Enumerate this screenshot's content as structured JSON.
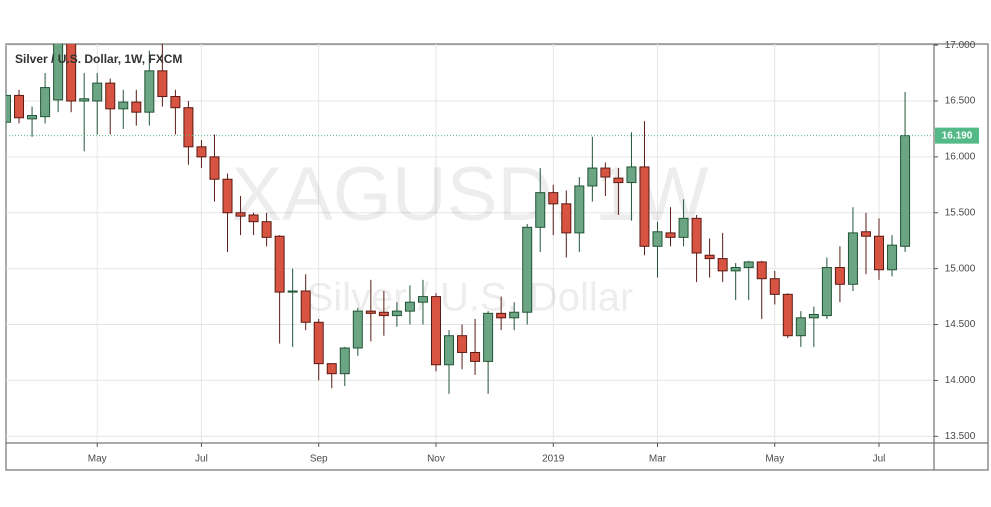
{
  "chart_data": {
    "type": "candlestick",
    "title": "Silver / U.S. Dollar, 1W, FXCM",
    "watermark": "XAGUSD, 1W",
    "watermark_subtitle": "Silver / U.S. Dollar",
    "categories": [
      null,
      null,
      null,
      null,
      null,
      null,
      null,
      "May",
      null,
      null,
      null,
      null,
      null,
      null,
      null,
      "Jul",
      null,
      null,
      null,
      null,
      null,
      null,
      null,
      null,
      "Sep",
      null,
      null,
      null,
      null,
      null,
      null,
      null,
      null,
      "Nov",
      null,
      null,
      null,
      null,
      null,
      null,
      null,
      null,
      "2019",
      null,
      null,
      null,
      null,
      null,
      null,
      null,
      "Mar",
      null,
      null,
      null,
      null,
      null,
      null,
      null,
      null,
      "May",
      null,
      null,
      null,
      null,
      null,
      null,
      null,
      "Jul",
      null,
      null
    ],
    "open": [
      16.31,
      16.55,
      16.34,
      16.36,
      16.51,
      17.05,
      16.5,
      16.5,
      16.66,
      16.43,
      16.49,
      16.4,
      16.77,
      16.54,
      16.44,
      16.09,
      16.0,
      15.8,
      15.5,
      15.48,
      15.42,
      15.29,
      14.79,
      14.8,
      14.52,
      14.15,
      14.06,
      14.29,
      14.62,
      14.61,
      14.58,
      14.62,
      14.7,
      14.75,
      14.14,
      14.4,
      14.25,
      14.17,
      14.6,
      14.56,
      14.61,
      15.37,
      15.68,
      15.58,
      15.32,
      15.74,
      15.9,
      15.81,
      15.77,
      15.91,
      15.2,
      15.32,
      15.28,
      15.45,
      15.12,
      15.09,
      14.98,
      15.01,
      15.06,
      14.91,
      14.77,
      14.4,
      14.56,
      14.58,
      15.01,
      14.86,
      15.33,
      15.29,
      14.99,
      15.2
    ],
    "high": [
      16.6,
      16.6,
      16.45,
      16.75,
      17.2,
      17.2,
      16.75,
      16.75,
      16.7,
      16.6,
      16.6,
      16.95,
      17.05,
      16.6,
      16.5,
      16.15,
      16.2,
      15.85,
      15.65,
      15.5,
      15.5,
      15.3,
      15.0,
      14.95,
      14.55,
      14.15,
      14.3,
      14.65,
      14.9,
      14.8,
      14.7,
      14.85,
      14.9,
      14.78,
      14.45,
      14.5,
      14.55,
      14.62,
      14.75,
      14.7,
      15.4,
      15.9,
      15.75,
      15.7,
      15.82,
      16.18,
      15.95,
      15.9,
      16.22,
      16.32,
      15.42,
      15.55,
      15.62,
      15.48,
      15.27,
      15.32,
      15.05,
      15.07,
      15.07,
      14.98,
      14.78,
      14.62,
      14.66,
      15.1,
      15.2,
      15.55,
      15.5,
      15.45,
      15.3,
      16.58
    ],
    "low": [
      16.25,
      16.3,
      16.18,
      16.3,
      16.4,
      16.4,
      16.05,
      16.2,
      16.2,
      16.25,
      16.28,
      16.28,
      16.45,
      16.2,
      15.93,
      15.9,
      15.6,
      15.15,
      15.3,
      15.3,
      15.2,
      14.33,
      14.3,
      14.45,
      14.0,
      13.93,
      13.95,
      14.22,
      14.35,
      14.4,
      14.48,
      14.5,
      14.5,
      14.08,
      13.88,
      14.1,
      14.05,
      13.88,
      14.45,
      14.45,
      14.5,
      15.15,
      15.3,
      15.1,
      15.15,
      15.6,
      15.65,
      15.48,
      15.43,
      15.12,
      14.92,
      15.2,
      15.2,
      14.88,
      14.92,
      14.88,
      14.72,
      14.72,
      14.55,
      14.68,
      14.38,
      14.3,
      14.3,
      14.55,
      14.7,
      14.8,
      14.95,
      14.9,
      14.93,
      15.15
    ],
    "close": [
      16.55,
      16.35,
      16.37,
      16.62,
      17.1,
      16.5,
      16.52,
      16.66,
      16.43,
      16.49,
      16.4,
      16.77,
      16.54,
      16.44,
      16.09,
      16.0,
      15.8,
      15.5,
      15.47,
      15.42,
      15.28,
      14.79,
      14.8,
      14.52,
      14.15,
      14.06,
      14.29,
      14.62,
      14.6,
      14.58,
      14.62,
      14.7,
      14.75,
      14.14,
      14.4,
      14.25,
      14.17,
      14.6,
      14.56,
      14.61,
      15.37,
      15.68,
      15.58,
      15.32,
      15.74,
      15.9,
      15.82,
      15.77,
      15.91,
      15.2,
      15.33,
      15.28,
      15.45,
      15.14,
      15.09,
      14.98,
      15.01,
      15.06,
      14.91,
      14.77,
      14.4,
      14.56,
      14.59,
      15.01,
      14.86,
      15.32,
      15.29,
      14.99,
      15.21,
      16.19
    ],
    "up_color": "#6ba583",
    "up_border": "#225437",
    "down_color": "#d75442",
    "down_border": "#5b1a13",
    "current_price": {
      "value": 16.19,
      "label": "16.190"
    },
    "current_price_color": "#53b987",
    "ylim": [
      13.44,
      17.01
    ],
    "yticks": [
      {
        "value": 13.5,
        "label": "13.500"
      },
      {
        "value": 14,
        "label": "14.000"
      },
      {
        "value": 14.5,
        "label": "14.500"
      },
      {
        "value": 15,
        "label": "15.000"
      },
      {
        "value": 15.5,
        "label": "15.500"
      },
      {
        "value": 16,
        "label": "16.000"
      },
      {
        "value": 16.5,
        "label": "16.500"
      },
      {
        "value": 17,
        "label": "17.000"
      }
    ],
    "grid": true
  }
}
